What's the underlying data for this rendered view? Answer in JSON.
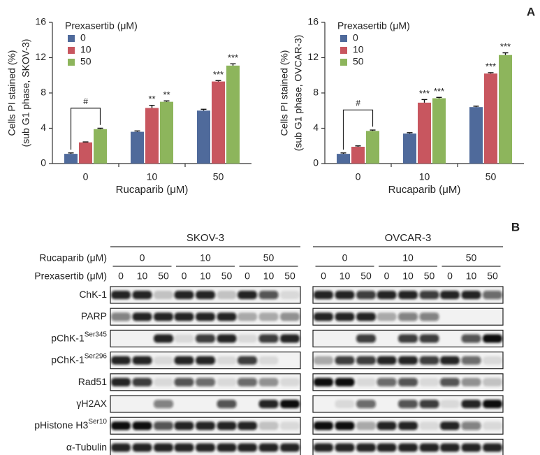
{
  "panel_labels": [
    "A",
    "B"
  ],
  "chart_data": [
    {
      "type": "bar",
      "ylabel": [
        "Cells PI stained (%)",
        "(sub G1 phase, SKOV-3)"
      ],
      "xlabel": "Rucaparib (μM)",
      "legend_title": "Prexasertib (μM)",
      "categories": [
        "0",
        "10",
        "50"
      ],
      "ylim": [
        0,
        16
      ],
      "yticks": [
        0,
        4,
        8,
        12,
        16
      ],
      "bracket_label": "#",
      "series": [
        {
          "name": "0",
          "color": "#4f6a9b",
          "values": [
            1.1,
            3.6,
            6.0
          ],
          "errors": [
            0.1,
            0.1,
            0.15
          ]
        },
        {
          "name": "10",
          "color": "#c8565f",
          "values": [
            2.4,
            6.3,
            9.3
          ],
          "errors": [
            0.05,
            0.3,
            0.1
          ],
          "significance": [
            null,
            "**",
            "***"
          ]
        },
        {
          "name": "50",
          "color": "#8db55c",
          "values": [
            3.9,
            7.0,
            11.1
          ],
          "errors": [
            0.1,
            0.1,
            0.2
          ],
          "significance": [
            null,
            "**",
            "***"
          ]
        }
      ]
    },
    {
      "type": "bar",
      "ylabel": [
        "Cells PI stained (%)",
        "(sub G1 phase, OVCAR-3)"
      ],
      "xlabel": "Rucaparib (μM)",
      "legend_title": "Prexasertib (μM)",
      "categories": [
        "0",
        "10",
        "50"
      ],
      "ylim": [
        0,
        16
      ],
      "yticks": [
        0,
        4,
        8,
        12,
        16
      ],
      "bracket_label": "#",
      "series": [
        {
          "name": "0",
          "color": "#4f6a9b",
          "values": [
            1.1,
            3.4,
            6.4
          ],
          "errors": [
            0.1,
            0.1,
            0.1
          ]
        },
        {
          "name": "10",
          "color": "#c8565f",
          "values": [
            1.9,
            6.9,
            10.2
          ],
          "errors": [
            0.1,
            0.35,
            0.1
          ],
          "significance": [
            null,
            "***",
            "***"
          ]
        },
        {
          "name": "50",
          "color": "#8db55c",
          "values": [
            3.7,
            7.4,
            12.3
          ],
          "errors": [
            0.1,
            0.1,
            0.25
          ],
          "significance": [
            null,
            "***",
            "***"
          ]
        }
      ]
    }
  ],
  "blot": {
    "cell_lines": [
      "SKOV-3",
      "OVCAR-3"
    ],
    "rucaparib_label": "Rucaparib (μM)",
    "rucaparib_doses": [
      "0",
      "10",
      "50"
    ],
    "prexasertib_label": "Prexasertib (μM)",
    "prexasertib_doses": [
      "0",
      "10",
      "50"
    ],
    "rows": [
      {
        "name": "ChK-1",
        "intensity": [
          [
            0.9,
            0.9,
            0.2,
            0.9,
            0.9,
            0.2,
            0.9,
            0.7,
            0.1
          ],
          [
            0.9,
            0.9,
            0.8,
            0.9,
            0.9,
            0.8,
            0.9,
            0.9,
            0.6
          ]
        ]
      },
      {
        "name": "PARP",
        "intensity": [
          [
            0.5,
            0.9,
            0.9,
            0.9,
            0.9,
            0.9,
            0.3,
            0.3,
            0.4
          ],
          [
            0.9,
            0.9,
            0.9,
            0.3,
            0.5,
            0.5,
            0,
            0,
            0
          ]
        ]
      },
      {
        "name": "pChK-1",
        "superscript": "Ser345",
        "intensity": [
          [
            0,
            0,
            0.9,
            0.1,
            0.8,
            0.9,
            0.1,
            0.8,
            0.9
          ],
          [
            0,
            0,
            0.8,
            0,
            0.8,
            0.8,
            0,
            0.7,
            1
          ]
        ]
      },
      {
        "name": "pChK-1",
        "superscript": "Ser296",
        "intensity": [
          [
            0.9,
            0.9,
            0.1,
            0.9,
            0.9,
            0.1,
            0.8,
            0.1,
            0
          ],
          [
            0.3,
            0.8,
            0.8,
            0.9,
            0.9,
            0.8,
            0.9,
            0.6,
            0.1
          ]
        ]
      },
      {
        "name": "Rad51",
        "intensity": [
          [
            0.9,
            0.8,
            0.1,
            0.7,
            0.6,
            0.1,
            0.6,
            0.4,
            0.1
          ],
          [
            1,
            1,
            0.1,
            0.6,
            0.7,
            0.1,
            0.7,
            0.4,
            0.2
          ]
        ]
      },
      {
        "name": "γH2AX",
        "intensity": [
          [
            0,
            0,
            0.5,
            0,
            0,
            0.7,
            0,
            0.9,
            1
          ],
          [
            0,
            0.1,
            0.6,
            0,
            0.7,
            0.8,
            0.1,
            0.9,
            1
          ]
        ]
      },
      {
        "name": "pHistone H3",
        "superscript": "Ser10",
        "intensity": [
          [
            1,
            1,
            0.7,
            0.9,
            0.9,
            0.9,
            0.9,
            0.2,
            0.1
          ],
          [
            1,
            1,
            0.3,
            0.9,
            0.9,
            0.1,
            0.9,
            0.5,
            0.1
          ]
        ]
      },
      {
        "name": "α-Tubulin",
        "intensity": [
          [
            0.9,
            0.9,
            0.9,
            0.9,
            0.9,
            0.9,
            0.9,
            0.9,
            0.9
          ],
          [
            0.9,
            0.9,
            0.9,
            0.9,
            0.9,
            0.9,
            0.9,
            0.9,
            0.9
          ]
        ]
      }
    ]
  }
}
